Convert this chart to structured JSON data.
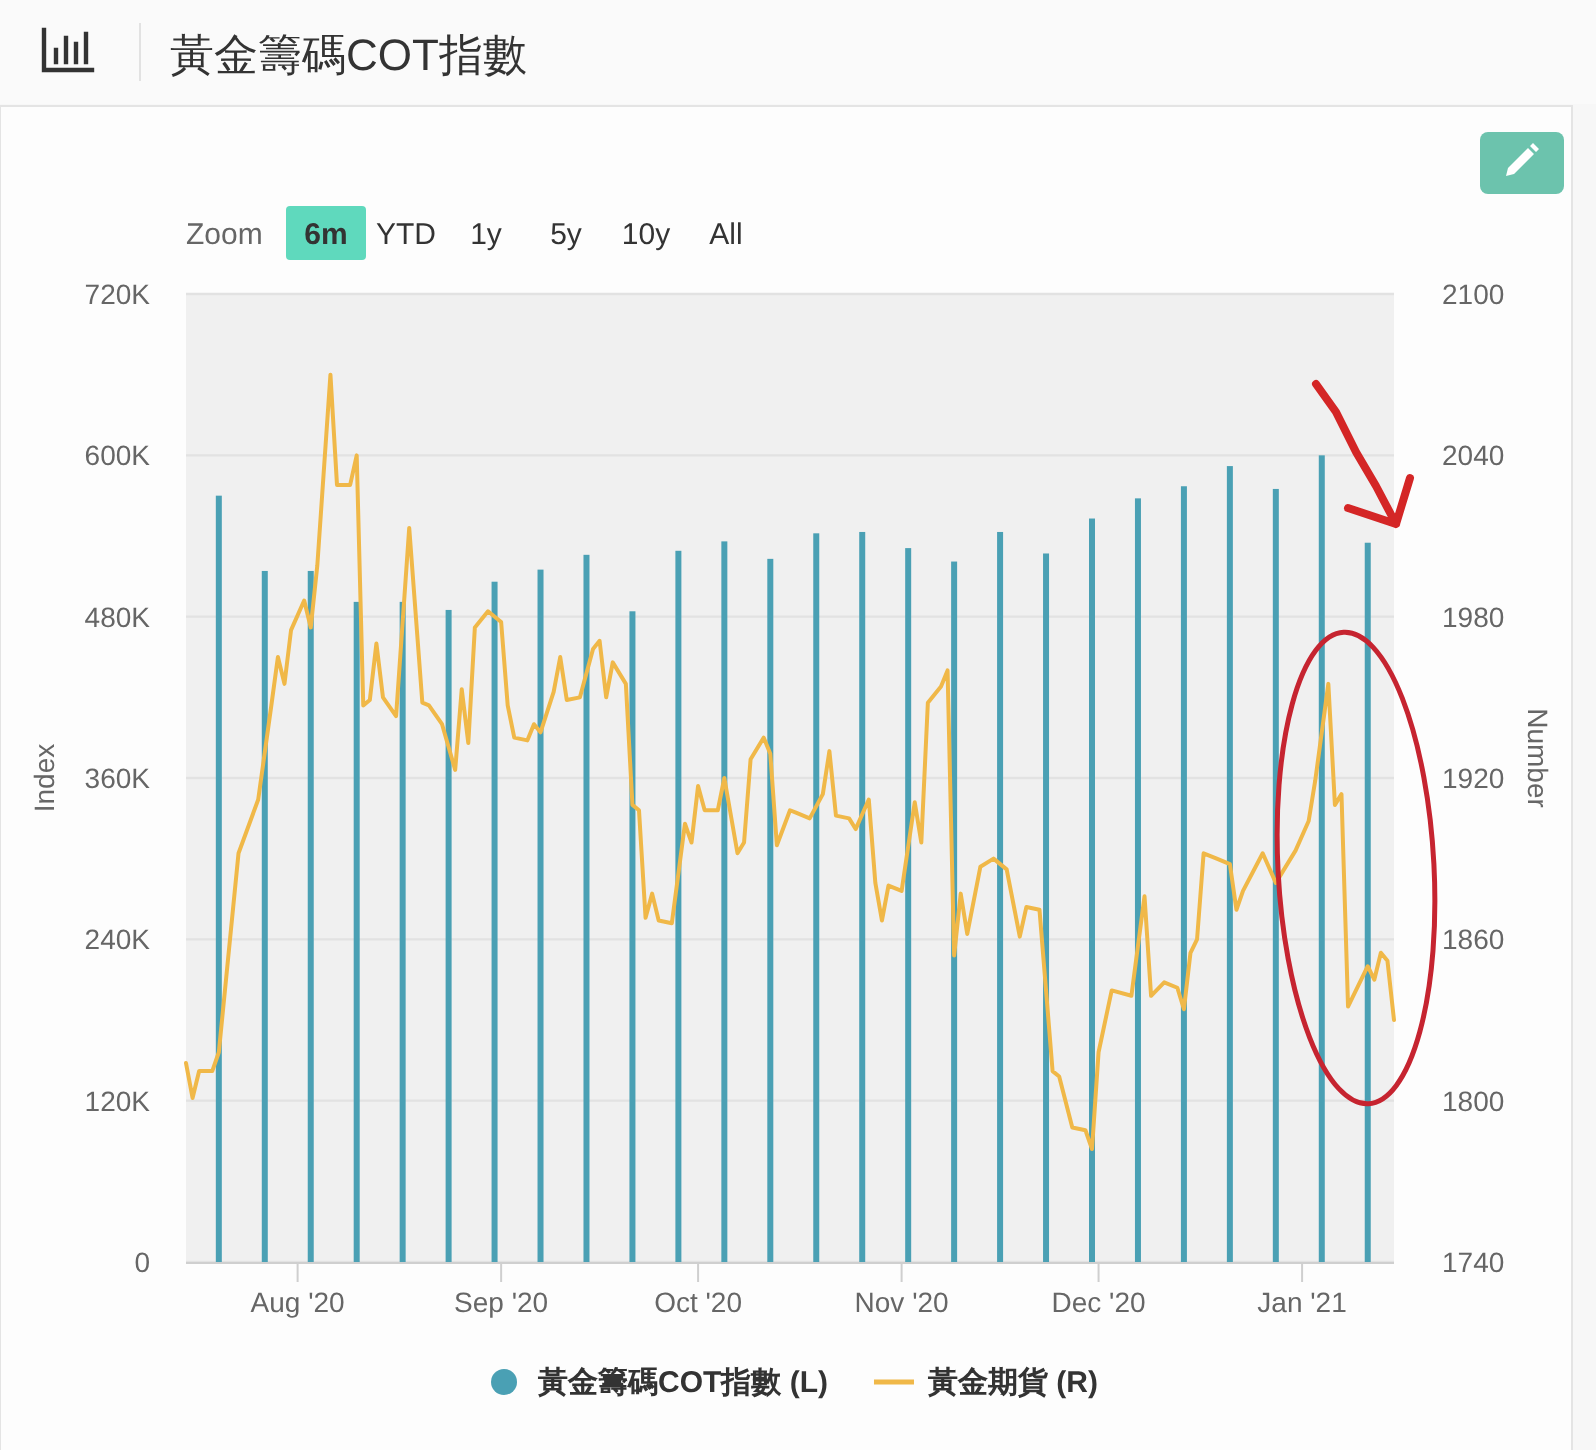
{
  "chart_data": {
    "type": "bar",
    "title": "黃金籌碼COT指數",
    "annotations": [
      "Zoom",
      "6m",
      "YTD",
      "1y",
      "5y",
      "10y",
      "All"
    ],
    "ylabel": "Index",
    "y2label": "Number",
    "xlim": [
      "2020-07-15",
      "2021-01-15"
    ],
    "xticks": [
      {
        "value": "2020-08-01",
        "label": "Aug '20"
      },
      {
        "value": "2020-09-01",
        "label": "Sep '20"
      },
      {
        "value": "2020-10-01",
        "label": "Oct '20"
      },
      {
        "value": "2020-11-01",
        "label": "Nov '20"
      },
      {
        "value": "2020-12-01",
        "label": "Dec '20"
      },
      {
        "value": "2021-01-01",
        "label": "Jan '21"
      }
    ],
    "ylim": [
      0,
      720000
    ],
    "yticks": [
      0,
      {
        "value": 120000,
        "label": "120K"
      },
      {
        "value": 240000,
        "label": "240K"
      },
      {
        "value": 360000,
        "label": "360K"
      },
      {
        "value": 480000,
        "label": "480K"
      },
      {
        "value": 600000,
        "label": "600K"
      },
      {
        "value": 720000,
        "label": "720K"
      }
    ],
    "y2lim": [
      1740,
      2100
    ],
    "y2ticks": [
      1740,
      1800,
      1860,
      1920,
      1980,
      2040,
      2100
    ],
    "grid": "y",
    "legend": "bottom",
    "series": [
      {
        "name": "黃金籌碼COT指數 (L)",
        "color": "#4aa0b4",
        "x": [
          "2020-07-20",
          "2020-07-27",
          "2020-08-03",
          "2020-08-10",
          "2020-08-17",
          "2020-08-24",
          "2020-08-31",
          "2020-09-07",
          "2020-09-14",
          "2020-09-21",
          "2020-09-28",
          "2020-10-05",
          "2020-10-12",
          "2020-10-19",
          "2020-10-26",
          "2020-11-02",
          "2020-11-09",
          "2020-11-16",
          "2020-11-23",
          "2020-11-30",
          "2020-12-07",
          "2020-12-14",
          "2020-12-21",
          "2020-12-28",
          "2021-01-04",
          "2021-01-11"
        ],
        "values": [
          570000,
          514000,
          514000,
          491000,
          491000,
          485000,
          506000,
          515000,
          526000,
          484000,
          529000,
          536000,
          523000,
          542000,
          543000,
          531000,
          521000,
          543000,
          527000,
          553000,
          568000,
          577000,
          592000,
          575000,
          600000,
          535000
        ]
      },
      {
        "name": "黃金期貨 (R)",
        "type": "line",
        "axis": "y2",
        "color": "#f0b848",
        "x": [
          "2020-07-15",
          "2020-07-16",
          "2020-07-17",
          "2020-07-19",
          "2020-07-20",
          "2020-07-23",
          "2020-07-26",
          "2020-07-28",
          "2020-07-29",
          "2020-07-30",
          "2020-07-31",
          "2020-08-02",
          "2020-08-03",
          "2020-08-04",
          "2020-08-06",
          "2020-08-07",
          "2020-08-09",
          "2020-08-10",
          "2020-08-11",
          "2020-08-12",
          "2020-08-13",
          "2020-08-14",
          "2020-08-16",
          "2020-08-18",
          "2020-08-20",
          "2020-08-21",
          "2020-08-23",
          "2020-08-25",
          "2020-08-26",
          "2020-08-27",
          "2020-08-28",
          "2020-08-30",
          "2020-09-01",
          "2020-09-02",
          "2020-09-03",
          "2020-09-05",
          "2020-09-06",
          "2020-09-07",
          "2020-09-09",
          "2020-09-10",
          "2020-09-11",
          "2020-09-13",
          "2020-09-15",
          "2020-09-16",
          "2020-09-17",
          "2020-09-18",
          "2020-09-20",
          "2020-09-21",
          "2020-09-22",
          "2020-09-23",
          "2020-09-24",
          "2020-09-25",
          "2020-09-27",
          "2020-09-29",
          "2020-09-30",
          "2020-10-01",
          "2020-10-02",
          "2020-10-04",
          "2020-10-05",
          "2020-10-07",
          "2020-10-08",
          "2020-10-09",
          "2020-10-11",
          "2020-10-12",
          "2020-10-13",
          "2020-10-15",
          "2020-10-16",
          "2020-10-18",
          "2020-10-20",
          "2020-10-21",
          "2020-10-22",
          "2020-10-24",
          "2020-10-25",
          "2020-10-27",
          "2020-10-28",
          "2020-10-29",
          "2020-10-30",
          "2020-11-01",
          "2020-11-03",
          "2020-11-04",
          "2020-11-05",
          "2020-11-07",
          "2020-11-08",
          "2020-11-09",
          "2020-11-10",
          "2020-11-11",
          "2020-11-13",
          "2020-11-15",
          "2020-11-17",
          "2020-11-19",
          "2020-11-20",
          "2020-11-22",
          "2020-11-24",
          "2020-11-25",
          "2020-11-27",
          "2020-11-29",
          "2020-11-30",
          "2020-12-01",
          "2020-12-03",
          "2020-12-06",
          "2020-12-08",
          "2020-12-09",
          "2020-12-11",
          "2020-12-13",
          "2020-12-14",
          "2020-12-15",
          "2020-12-16",
          "2020-12-17",
          "2020-12-19",
          "2020-12-21",
          "2020-12-22",
          "2020-12-23",
          "2020-12-26",
          "2020-12-28",
          "2020-12-31",
          "2021-01-02",
          "2021-01-03",
          "2021-01-05",
          "2021-01-06",
          "2021-01-07",
          "2021-01-08",
          "2021-01-11",
          "2021-01-12",
          "2021-01-13",
          "2021-01-14",
          "2021-01-15"
        ],
        "values": [
          1814,
          1801,
          1811,
          1811,
          1818,
          1892,
          1912,
          1947,
          1965,
          1955,
          1975,
          1986,
          1976,
          1999,
          2070,
          2029,
          2029,
          2040,
          1947,
          1949,
          1970,
          1950,
          1943,
          2013,
          1948,
          1947,
          1940,
          1923,
          1953,
          1933,
          1976,
          1982,
          1978,
          1947,
          1935,
          1934,
          1940,
          1937,
          1952,
          1965,
          1949,
          1950,
          1968,
          1971,
          1950,
          1963,
          1955,
          1910,
          1908,
          1868,
          1877,
          1867,
          1866,
          1903,
          1896,
          1917,
          1908,
          1908,
          1920,
          1892,
          1896,
          1927,
          1935,
          1929,
          1895,
          1908,
          1907,
          1905,
          1914,
          1930,
          1906,
          1905,
          1901,
          1912,
          1881,
          1867,
          1880,
          1878,
          1911,
          1896,
          1948,
          1954,
          1960,
          1854,
          1877,
          1862,
          1887,
          1890,
          1886,
          1861,
          1872,
          1871,
          1811,
          1809,
          1790,
          1789,
          1782,
          1818,
          1841,
          1839,
          1876,
          1839,
          1844,
          1842,
          1834,
          1855,
          1860,
          1892,
          1890,
          1888,
          1871,
          1878,
          1892,
          1881,
          1893,
          1904,
          1919,
          1955,
          1910,
          1914,
          1835,
          1850,
          1845,
          1855,
          1852,
          1830
        ]
      }
    ]
  }
}
